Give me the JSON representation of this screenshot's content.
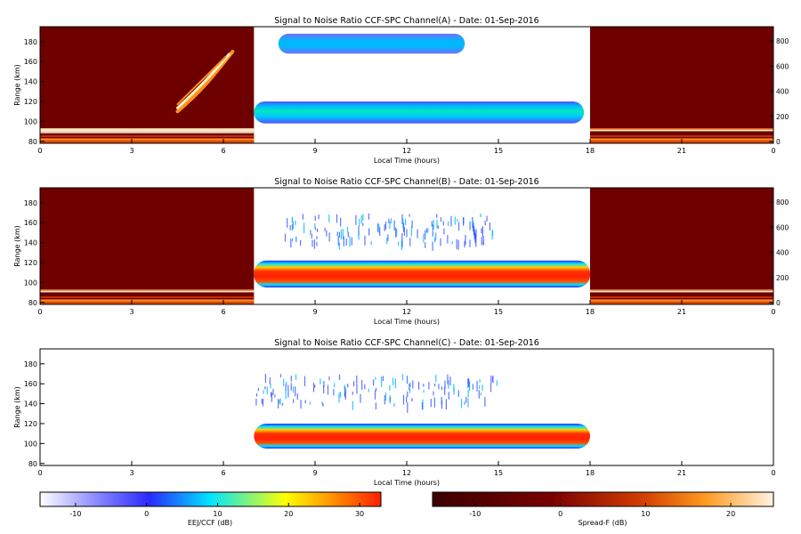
{
  "chart_data": [
    {
      "type": "heatmap",
      "title": "Signal to Noise Ratio CCF-SPC Channel(A) - Date: 01-Sep-2016",
      "xlabel": "Local Time (hours)",
      "ylabel": "Range (km)",
      "xlim": [
        0,
        24
      ],
      "ylim": [
        78,
        195
      ],
      "x_ticks": [
        "0",
        "3",
        "6",
        "9",
        "12",
        "15",
        "18",
        "21",
        "0"
      ],
      "y_ticks": [
        80,
        100,
        120,
        140,
        160,
        180
      ],
      "right_axis_ticks": [
        0,
        200,
        400,
        600,
        800
      ],
      "spread_f_intervals_hours": [
        [
          0,
          7
        ],
        [
          18,
          24
        ]
      ],
      "eej_ccf_intervals_hours": [
        [
          7,
          18
        ]
      ],
      "features": [
        {
          "layer": "EEJ/CCF",
          "range_km": [
            98,
            120
          ],
          "time_hours": [
            7,
            17.8
          ],
          "peak_snr_db": 15
        },
        {
          "layer": "EEJ/CCF",
          "range_km": [
            168,
            188
          ],
          "time_hours": [
            7.8,
            13.9
          ],
          "peak_snr_db": 3
        },
        {
          "layer": "Spread-F",
          "range_km": [
            110,
            170
          ],
          "time_hours": [
            4.4,
            6.4
          ],
          "peak_snr_db": 15
        },
        {
          "layer": "Spread-F",
          "range_km": [
            88,
            93
          ],
          "time_hours": [
            0,
            7
          ],
          "peak_snr_db": 20
        }
      ]
    },
    {
      "type": "heatmap",
      "title": "Signal to Noise Ratio CCF-SPC Channel(B) - Date: 01-Sep-2016",
      "xlabel": "Local Time (hours)",
      "ylabel": "Range (km)",
      "xlim": [
        0,
        24
      ],
      "ylim": [
        78,
        195
      ],
      "x_ticks": [
        "0",
        "3",
        "6",
        "9",
        "12",
        "15",
        "18",
        "21",
        "0"
      ],
      "y_ticks": [
        80,
        100,
        120,
        140,
        160,
        180
      ],
      "right_axis_ticks": [
        0,
        200,
        400,
        600,
        800
      ],
      "spread_f_intervals_hours": [
        [
          0,
          7
        ],
        [
          18,
          24
        ]
      ],
      "eej_ccf_intervals_hours": [
        [
          7,
          18
        ]
      ],
      "features": [
        {
          "layer": "EEJ/CCF",
          "range_km": [
            95,
            122
          ],
          "time_hours": [
            7,
            18
          ],
          "peak_snr_db": 30
        },
        {
          "layer": "EEJ/CCF",
          "range_km": [
            140,
            170
          ],
          "time_hours": [
            8,
            15
          ],
          "peak_snr_db": -5
        }
      ]
    },
    {
      "type": "heatmap",
      "title": "Signal to Noise Ratio CCF-SPC Channel(C) - Date: 01-Sep-2016",
      "xlabel": "Local Time (hours)",
      "ylabel": "Range (km)",
      "xlim": [
        0,
        24
      ],
      "ylim": [
        78,
        195
      ],
      "x_ticks": [
        "0",
        "3",
        "6",
        "9",
        "12",
        "15",
        "18",
        "21",
        "0"
      ],
      "y_ticks": [
        80,
        100,
        120,
        140,
        160,
        180
      ],
      "eej_ccf_intervals_hours": [
        [
          7,
          18
        ]
      ],
      "features": [
        {
          "layer": "EEJ/CCF",
          "range_km": [
            95,
            120
          ],
          "time_hours": [
            7,
            18
          ],
          "peak_snr_db": 30
        },
        {
          "layer": "EEJ/CCF",
          "range_km": [
            140,
            170
          ],
          "time_hours": [
            7,
            15
          ],
          "peak_snr_db": -5
        }
      ]
    }
  ],
  "colorbars": [
    {
      "label": "EEJ/CCF (dB)",
      "ticks": [
        "-10",
        "0",
        "10",
        "20",
        "30"
      ],
      "range_db": [
        -15,
        33
      ],
      "colors": [
        "#ffffff",
        "#3b3bff",
        "#00e5ff",
        "#ffff00",
        "#ff2000"
      ]
    },
    {
      "label": "Spread-F (dB)",
      "ticks": [
        "-10",
        "0",
        "10",
        "20"
      ],
      "range_db": [
        -15,
        25
      ],
      "colors": [
        "#3c0000",
        "#7a0000",
        "#d44000",
        "#ff9a20",
        "#fff4e0"
      ]
    }
  ]
}
